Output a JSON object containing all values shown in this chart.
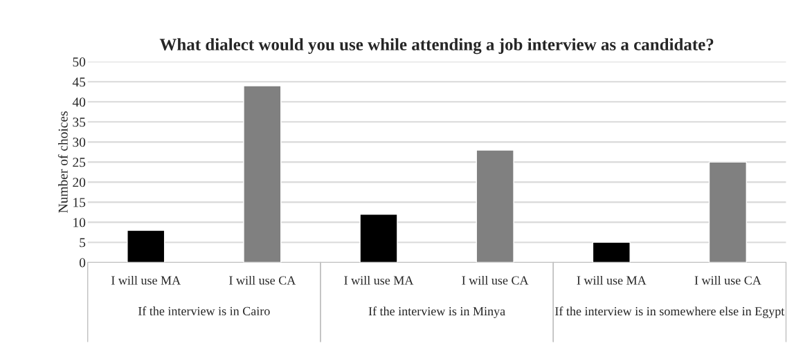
{
  "chart_data": {
    "type": "bar",
    "title": "What dialect would you use while attending a job interview as a candidate?",
    "ylabel": "Number of choices",
    "categories": [
      "I will use MA",
      "I will use CA",
      "I will use MA",
      "I will use CA",
      "I will use MA",
      "I will use CA"
    ],
    "values": [
      8,
      44,
      12,
      28,
      5,
      25
    ],
    "colors": [
      "#000000",
      "#808080",
      "#000000",
      "#808080",
      "#000000",
      "#808080"
    ],
    "ylim": [
      0,
      50
    ],
    "yticks": [
      0,
      5,
      10,
      15,
      20,
      25,
      30,
      35,
      40,
      45,
      50
    ],
    "grid": "y",
    "annotations": [
      "If the interview is in Cairo",
      "If the interview is in Minya",
      "If the interview is in somewhere else in Egypt"
    ]
  }
}
